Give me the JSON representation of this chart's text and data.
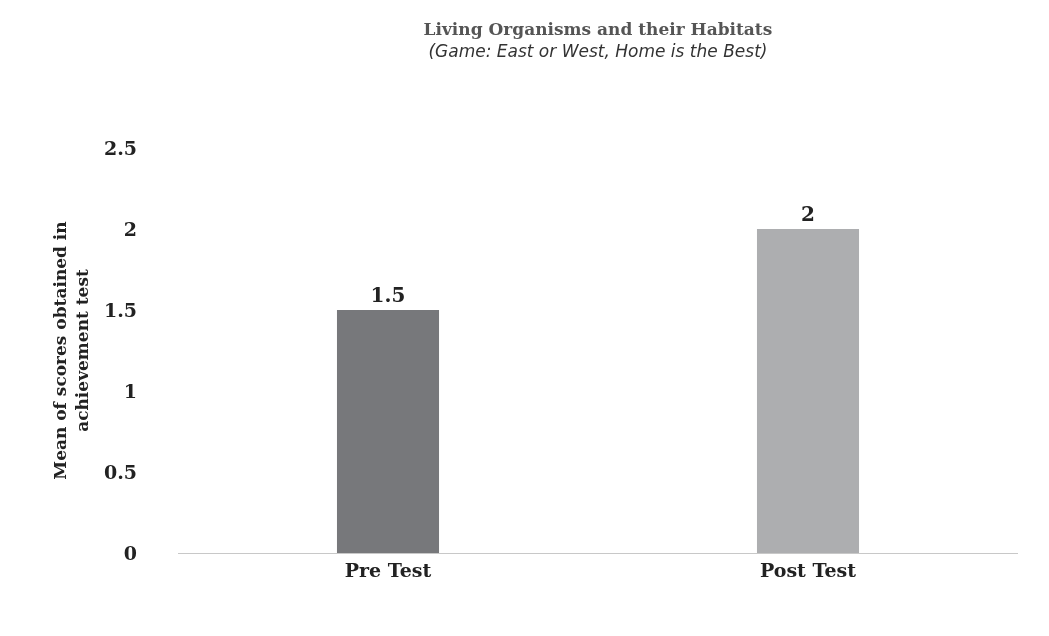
{
  "chart_data": {
    "type": "bar",
    "title": "Living Organisms and their Habitats",
    "subtitle": "(Game: East or West, Home is the Best)",
    "ylabel": "Mean of scores obtained in\nachievement test",
    "categories": [
      "Pre Test",
      "Post Test"
    ],
    "values": [
      1.5,
      2
    ],
    "colors": [
      "#77787b",
      "#adaeb0"
    ],
    "ylim": [
      0,
      2.5
    ],
    "yticks": [
      0,
      0.5,
      1,
      1.5,
      2,
      2.5
    ],
    "data_labels": true
  }
}
